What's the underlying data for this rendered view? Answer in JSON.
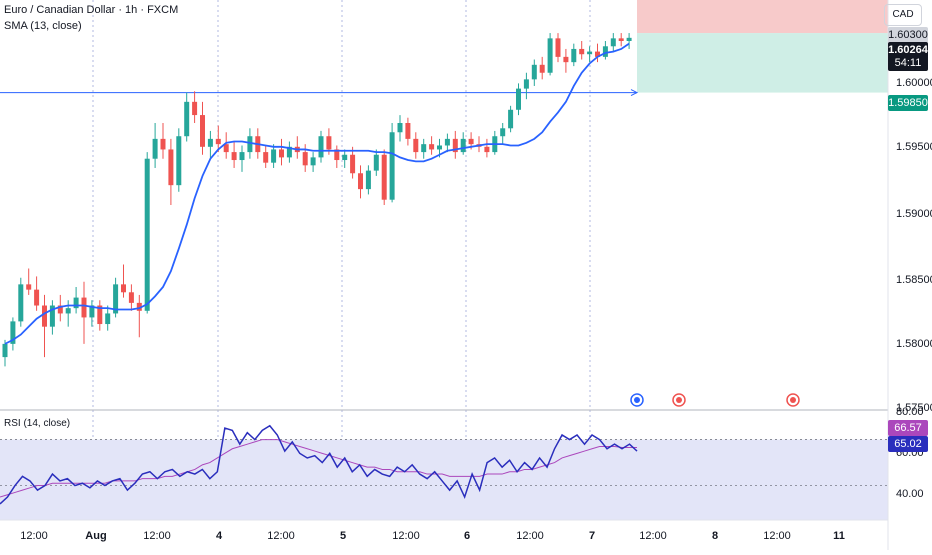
{
  "header": {
    "title": "Euro / Canadian Dollar · 1h · FXCM",
    "indicator": "SMA (13, close)",
    "rsi_label": "RSI (14, close)",
    "currency": "CAD"
  },
  "price_scale": {
    "ticks": [
      "1.60000",
      "1.59500",
      "1.59000",
      "1.58500",
      "1.58000",
      "1.57500"
    ],
    "tp_label": "1.60300",
    "last_price": "1.60264",
    "countdown": "54:11",
    "entry_label": "1.59850"
  },
  "rsi_scale": {
    "ticks": [
      "80.00",
      "60.00",
      "40.00"
    ],
    "value_sma": "66.57",
    "value_rsi": "65.02"
  },
  "time_axis": [
    "12:00",
    "Aug",
    "12:00",
    "4",
    "12:00",
    "5",
    "12:00",
    "6",
    "12:00",
    "7",
    "12:00",
    "8",
    "12:00",
    "11"
  ],
  "colors": {
    "up": "#26a69a",
    "down": "#ef5350",
    "sma": "#2962ff",
    "rsi": "#2a2ebd",
    "rsi_sma": "#ab47bc",
    "target_zone": "#f7caca",
    "stop_zone": "#cfeee6"
  },
  "chart_data": [
    {
      "type": "candlestick",
      "title": "Euro / Canadian Dollar · 1h · FXCM",
      "ylim": [
        1.5745,
        1.6055
      ],
      "series": [
        {
          "name": "SMA (13, close)",
          "values": [
            1.5795,
            1.5798,
            1.5802,
            1.5808,
            1.5814,
            1.5818,
            1.5821,
            1.5823,
            1.5824,
            1.5824,
            1.5824,
            1.5823,
            1.5822,
            1.5822,
            1.5821,
            1.5821,
            1.5821,
            1.5822,
            1.5825,
            1.5831,
            1.5838,
            1.585,
            1.5867,
            1.5885,
            1.5905,
            1.5922,
            1.5935,
            1.5942,
            1.5947,
            1.5948,
            1.5948,
            1.5947,
            1.5946,
            1.5945,
            1.5944,
            1.5944,
            1.5943,
            1.5942,
            1.5942,
            1.5941,
            1.5941,
            1.5941,
            1.5941,
            1.5941,
            1.5941,
            1.5941,
            1.5941,
            1.594,
            1.594,
            1.5939,
            1.5936,
            1.5934,
            1.5933,
            1.5933,
            1.5935,
            1.5938,
            1.5941,
            1.5942,
            1.5943,
            1.5944,
            1.5945,
            1.5946,
            1.5946,
            1.5946,
            1.5945,
            1.5945,
            1.5947,
            1.595,
            1.5955,
            1.5963,
            1.597,
            1.5978,
            1.599,
            1.6,
            1.6007,
            1.6012,
            1.6015,
            1.6016,
            1.6018,
            1.6022
          ]
        }
      ],
      "candles": [
        [
          1.5785,
          1.5798,
          1.5778,
          1.5795
        ],
        [
          1.5795,
          1.5815,
          1.579,
          1.5812
        ],
        [
          1.5812,
          1.5845,
          1.5808,
          1.584
        ],
        [
          1.584,
          1.5852,
          1.5832,
          1.5836
        ],
        [
          1.5836,
          1.5846,
          1.582,
          1.5824
        ],
        [
          1.5824,
          1.5832,
          1.5785,
          1.5808
        ],
        [
          1.5808,
          1.5828,
          1.5802,
          1.5824
        ],
        [
          1.5824,
          1.5832,
          1.5812,
          1.5818
        ],
        [
          1.5818,
          1.5828,
          1.5808,
          1.5822
        ],
        [
          1.5822,
          1.5838,
          1.5818,
          1.583
        ],
        [
          1.583,
          1.5842,
          1.5795,
          1.5815
        ],
        [
          1.5815,
          1.5828,
          1.5808,
          1.5824
        ],
        [
          1.5824,
          1.5828,
          1.5805,
          1.581
        ],
        [
          1.581,
          1.5824,
          1.5805,
          1.5818
        ],
        [
          1.5818,
          1.5845,
          1.5815,
          1.584
        ],
        [
          1.584,
          1.5855,
          1.583,
          1.5834
        ],
        [
          1.5834,
          1.584,
          1.582,
          1.5826
        ],
        [
          1.5826,
          1.5832,
          1.58,
          1.582
        ],
        [
          1.582,
          1.594,
          1.5818,
          1.5935
        ],
        [
          1.5935,
          1.5962,
          1.5928,
          1.595
        ],
        [
          1.595,
          1.5962,
          1.5935,
          1.5942
        ],
        [
          1.5942,
          1.595,
          1.59,
          1.5915
        ],
        [
          1.5915,
          1.5958,
          1.591,
          1.5952
        ],
        [
          1.5952,
          1.5985,
          1.5948,
          1.5978
        ],
        [
          1.5978,
          1.5986,
          1.5962,
          1.5968
        ],
        [
          1.5968,
          1.5978,
          1.5938,
          1.5944
        ],
        [
          1.5944,
          1.5956,
          1.5935,
          1.595
        ],
        [
          1.595,
          1.596,
          1.594,
          1.5946
        ],
        [
          1.5946,
          1.5955,
          1.5935,
          1.594
        ],
        [
          1.594,
          1.5948,
          1.5928,
          1.5934
        ],
        [
          1.5934,
          1.5945,
          1.5925,
          1.594
        ],
        [
          1.594,
          1.5958,
          1.5935,
          1.5952
        ],
        [
          1.5952,
          1.5958,
          1.5935,
          1.594
        ],
        [
          1.594,
          1.5945,
          1.5928,
          1.5932
        ],
        [
          1.5932,
          1.5946,
          1.5928,
          1.5942
        ],
        [
          1.5942,
          1.595,
          1.593,
          1.5936
        ],
        [
          1.5936,
          1.5948,
          1.5932,
          1.5944
        ],
        [
          1.5944,
          1.5952,
          1.5935,
          1.594
        ],
        [
          1.594,
          1.5946,
          1.5925,
          1.593
        ],
        [
          1.593,
          1.594,
          1.5925,
          1.5936
        ],
        [
          1.5936,
          1.5956,
          1.5932,
          1.5952
        ],
        [
          1.5952,
          1.5958,
          1.5938,
          1.5942
        ],
        [
          1.5942,
          1.5945,
          1.5928,
          1.5934
        ],
        [
          1.5934,
          1.5942,
          1.5928,
          1.5938
        ],
        [
          1.5938,
          1.5944,
          1.592,
          1.5924
        ],
        [
          1.5924,
          1.593,
          1.5905,
          1.5912
        ],
        [
          1.5912,
          1.593,
          1.5908,
          1.5926
        ],
        [
          1.5926,
          1.5942,
          1.5922,
          1.5938
        ],
        [
          1.5938,
          1.5942,
          1.59,
          1.5904
        ],
        [
          1.5904,
          1.5962,
          1.5902,
          1.5955
        ],
        [
          1.5955,
          1.5968,
          1.5948,
          1.5962
        ],
        [
          1.5962,
          1.5966,
          1.5945,
          1.595
        ],
        [
          1.595,
          1.5955,
          1.5935,
          1.594
        ],
        [
          1.594,
          1.595,
          1.5935,
          1.5946
        ],
        [
          1.5946,
          1.5952,
          1.5938,
          1.5942
        ],
        [
          1.5942,
          1.595,
          1.5936,
          1.5945
        ],
        [
          1.5945,
          1.5954,
          1.594,
          1.595
        ],
        [
          1.595,
          1.5956,
          1.5935,
          1.594
        ],
        [
          1.594,
          1.5955,
          1.5938,
          1.595
        ],
        [
          1.595,
          1.5955,
          1.5942,
          1.5946
        ],
        [
          1.5946,
          1.5952,
          1.594,
          1.5944
        ],
        [
          1.5944,
          1.595,
          1.5936,
          1.594
        ],
        [
          1.594,
          1.5956,
          1.5938,
          1.5952
        ],
        [
          1.5952,
          1.5962,
          1.5946,
          1.5958
        ],
        [
          1.5958,
          1.5975,
          1.5955,
          1.5972
        ],
        [
          1.5972,
          1.5992,
          1.5968,
          1.5988
        ],
        [
          1.5988,
          1.6,
          1.598,
          1.5995
        ],
        [
          1.5995,
          1.601,
          1.599,
          1.6006
        ],
        [
          1.6006,
          1.6012,
          1.5995,
          1.6
        ],
        [
          1.6,
          1.603,
          1.5998,
          1.6026
        ],
        [
          1.6026,
          1.603,
          1.6008,
          1.6012
        ],
        [
          1.6012,
          1.6018,
          1.6,
          1.6008
        ],
        [
          1.6008,
          1.6022,
          1.6005,
          1.6018
        ],
        [
          1.6018,
          1.6024,
          1.601,
          1.6014
        ],
        [
          1.6014,
          1.602,
          1.6008,
          1.6016
        ],
        [
          1.6016,
          1.6022,
          1.6008,
          1.6012
        ],
        [
          1.6012,
          1.6024,
          1.601,
          1.602
        ],
        [
          1.602,
          1.603,
          1.6016,
          1.6026
        ],
        [
          1.6026,
          1.603,
          1.602,
          1.6024
        ],
        [
          1.6024,
          1.603,
          1.6018,
          1.60264
        ]
      ],
      "position": {
        "entry": 1.5985,
        "target": 1.603,
        "stop_area": "1.59850 to 1.60300"
      }
    },
    {
      "type": "line",
      "title": "RSI (14, close)",
      "ylim": [
        35,
        82
      ],
      "levels": [
        70,
        50
      ],
      "series": [
        {
          "name": "RSI",
          "values": [
            42,
            45,
            50,
            54,
            52,
            48,
            50,
            55,
            52,
            53,
            50,
            51,
            49,
            52,
            50,
            52,
            53,
            48,
            51,
            55,
            56,
            53,
            56,
            57,
            54,
            56,
            55,
            57,
            53,
            56,
            75,
            74,
            68,
            73,
            70,
            74,
            76,
            72,
            65,
            69,
            64,
            62,
            63,
            60,
            64,
            58,
            62,
            56,
            59,
            54,
            57,
            55,
            54,
            58,
            56,
            59,
            55,
            53,
            56,
            52,
            48,
            52,
            45,
            55,
            48,
            60,
            62,
            58,
            61,
            56,
            60,
            57,
            62,
            58,
            66,
            72,
            70,
            72,
            68,
            72,
            70,
            66,
            68,
            66,
            68,
            65
          ]
        },
        {
          "name": "RSI-based MA",
          "values": [
            45,
            46,
            47,
            48,
            49,
            50,
            50,
            51,
            51,
            51,
            51,
            51,
            51,
            51,
            51,
            52,
            52,
            52,
            52,
            53,
            53,
            53,
            54,
            54,
            55,
            56,
            57,
            59,
            60,
            62,
            64,
            66,
            67,
            68,
            69,
            70,
            70,
            70,
            69,
            68,
            67,
            66,
            65,
            64,
            63,
            62,
            61,
            60,
            59,
            58,
            58,
            57,
            57,
            56,
            56,
            56,
            56,
            55,
            55,
            55,
            54,
            54,
            54,
            54,
            54,
            55,
            55,
            55,
            56,
            56,
            57,
            57,
            58,
            59,
            60,
            62,
            63,
            64,
            65,
            66,
            67,
            67,
            67,
            66.57,
            66.57,
            66.57
          ]
        }
      ]
    }
  ]
}
